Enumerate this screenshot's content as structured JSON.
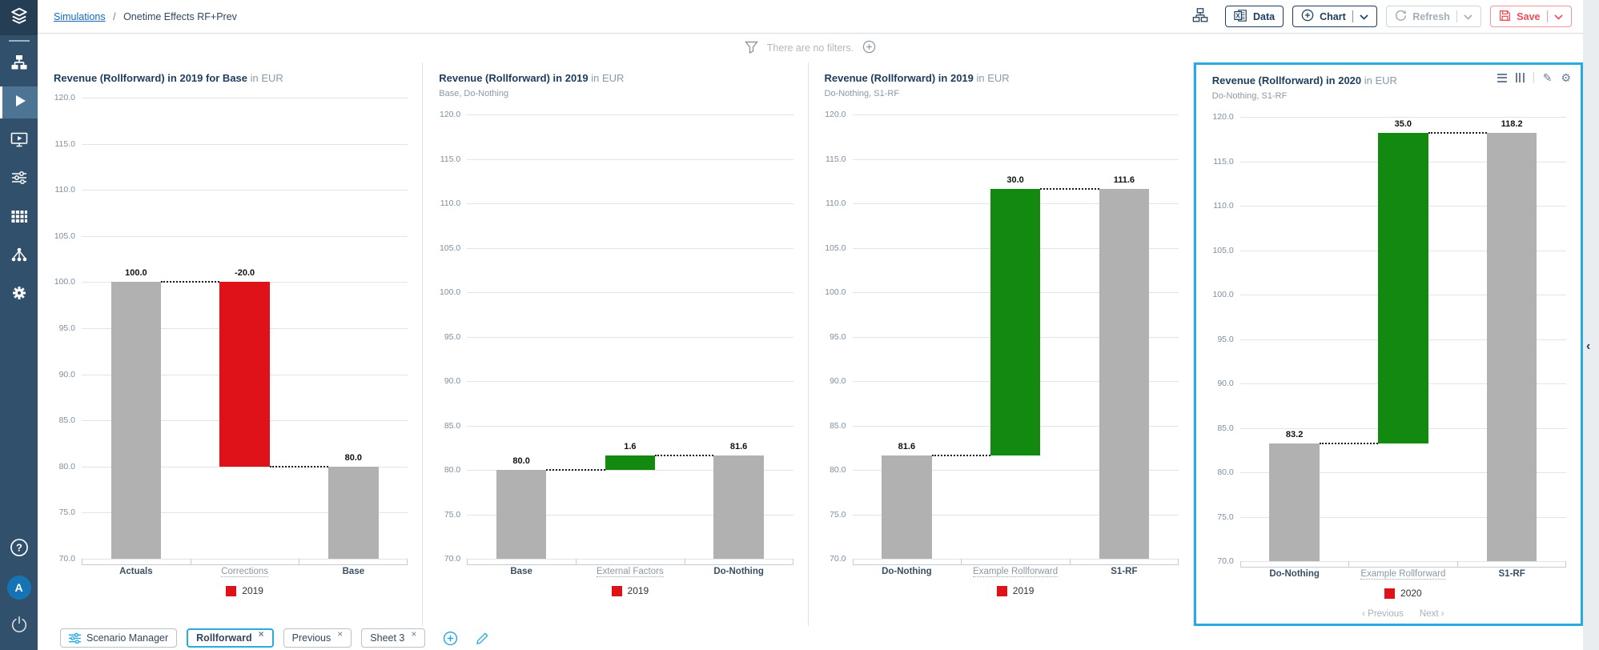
{
  "header": {
    "breadcrumb": {
      "root": "Simulations",
      "separator": "/",
      "current": "Onetime Effects RF+Prev"
    }
  },
  "toolbar": {
    "data": "Data",
    "chart": "Chart",
    "refresh": "Refresh",
    "save": "Save"
  },
  "filter_bar": {
    "text": "There are no filters."
  },
  "sidebar": {
    "avatar_initial": "A",
    "items": [
      "logo",
      "hierarchy",
      "play",
      "presentation",
      "sliders",
      "grid",
      "tree",
      "gear",
      "help",
      "avatar",
      "power"
    ]
  },
  "icons": {
    "menu": "menu",
    "columns": "columns",
    "edit": "✎",
    "settings": "⚙",
    "collapse": "‹",
    "close": "×",
    "prev": "‹",
    "next": "›"
  },
  "colors": {
    "gray": "#b1b1b1",
    "red": "#df1119",
    "green": "#128a10",
    "accent": "#29abe2",
    "navy": "#1d3c5e"
  },
  "tabs": {
    "items": [
      {
        "label": "Scenario Manager",
        "icon": "sliders",
        "closable": false,
        "active": false
      },
      {
        "label": "Rollforward",
        "closable": true,
        "active": true
      },
      {
        "label": "Previous",
        "closable": true,
        "active": false
      },
      {
        "label": "Sheet 3",
        "closable": true,
        "active": false
      }
    ]
  },
  "chart_data": [
    {
      "type": "bar",
      "variant": "waterfall",
      "title": "Revenue (Rollforward) in 2019 for Base",
      "unit": "in EUR",
      "subtitle": null,
      "ylim": [
        70,
        120
      ],
      "ytick_step": 5,
      "grid": true,
      "selected": false,
      "legend": {
        "label": "2019",
        "color": "#df1119",
        "position": "bottom"
      },
      "categories": [
        "Actuals",
        "Corrections",
        "Base"
      ],
      "bars": [
        {
          "category": "Actuals",
          "from": 70,
          "to": 100,
          "value_label": "100.0",
          "color_key": "gray",
          "link": false
        },
        {
          "category": "Corrections",
          "from": 80,
          "to": 100,
          "value_label": "-20.0",
          "color_key": "red",
          "link": true
        },
        {
          "category": "Base",
          "from": 70,
          "to": 80,
          "value_label": "80.0",
          "color_key": "gray",
          "link": false
        }
      ],
      "connectors": [
        {
          "value": 100,
          "after": 0
        },
        {
          "value": 80,
          "after": 1
        }
      ]
    },
    {
      "type": "bar",
      "variant": "waterfall",
      "title": "Revenue (Rollforward) in 2019",
      "unit": "in EUR",
      "subtitle": "Base, Do-Nothing",
      "ylim": [
        70,
        120
      ],
      "ytick_step": 5,
      "grid": true,
      "selected": false,
      "legend": {
        "label": "2019",
        "color": "#df1119",
        "position": "bottom"
      },
      "categories": [
        "Base",
        "External Factors",
        "Do-Nothing"
      ],
      "bars": [
        {
          "category": "Base",
          "from": 70,
          "to": 80,
          "value_label": "80.0",
          "color_key": "gray",
          "link": false
        },
        {
          "category": "External Factors",
          "from": 80,
          "to": 81.6,
          "value_label": "1.6",
          "color_key": "green",
          "link": true
        },
        {
          "category": "Do-Nothing",
          "from": 70,
          "to": 81.6,
          "value_label": "81.6",
          "color_key": "gray",
          "link": false
        }
      ],
      "connectors": [
        {
          "value": 80,
          "after": 0
        },
        {
          "value": 81.6,
          "after": 1
        }
      ]
    },
    {
      "type": "bar",
      "variant": "waterfall",
      "title": "Revenue (Rollforward) in 2019",
      "unit": "in EUR",
      "subtitle": "Do-Nothing, S1-RF",
      "ylim": [
        70,
        120
      ],
      "ytick_step": 5,
      "grid": true,
      "selected": false,
      "legend": {
        "label": "2019",
        "color": "#df1119",
        "position": "bottom"
      },
      "categories": [
        "Do-Nothing",
        "Example Rollforward",
        "S1-RF"
      ],
      "bars": [
        {
          "category": "Do-Nothing",
          "from": 70,
          "to": 81.6,
          "value_label": "81.6",
          "color_key": "gray",
          "link": false
        },
        {
          "category": "Example Rollforward",
          "from": 81.6,
          "to": 111.6,
          "value_label": "30.0",
          "color_key": "green",
          "link": true
        },
        {
          "category": "S1-RF",
          "from": 70,
          "to": 111.6,
          "value_label": "111.6",
          "color_key": "gray",
          "link": false
        }
      ],
      "connectors": [
        {
          "value": 81.6,
          "after": 0
        },
        {
          "value": 111.6,
          "after": 1
        }
      ]
    },
    {
      "type": "bar",
      "variant": "waterfall",
      "title": "Revenue (Rollforward) in 2020",
      "unit": "in EUR",
      "subtitle": "Do-Nothing, S1-RF",
      "ylim": [
        70,
        120
      ],
      "ytick_step": 5,
      "grid": true,
      "selected": true,
      "legend": {
        "label": "2020",
        "color": "#df1119",
        "position": "bottom"
      },
      "header_icons": [
        "menu",
        "columns",
        "divider",
        "edit",
        "settings"
      ],
      "pagination": {
        "previous": "Previous",
        "next": "Next"
      },
      "categories": [
        "Do-Nothing",
        "Example Rollforward",
        "S1-RF"
      ],
      "bars": [
        {
          "category": "Do-Nothing",
          "from": 70,
          "to": 83.2,
          "value_label": "83.2",
          "color_key": "gray",
          "link": false
        },
        {
          "category": "Example Rollforward",
          "from": 83.2,
          "to": 118.2,
          "value_label": "35.0",
          "color_key": "green",
          "link": true
        },
        {
          "category": "S1-RF",
          "from": 70,
          "to": 118.2,
          "value_label": "118.2",
          "color_key": "gray",
          "link": false
        }
      ],
      "connectors": [
        {
          "value": 83.2,
          "after": 0
        },
        {
          "value": 118.2,
          "after": 1
        }
      ]
    }
  ]
}
